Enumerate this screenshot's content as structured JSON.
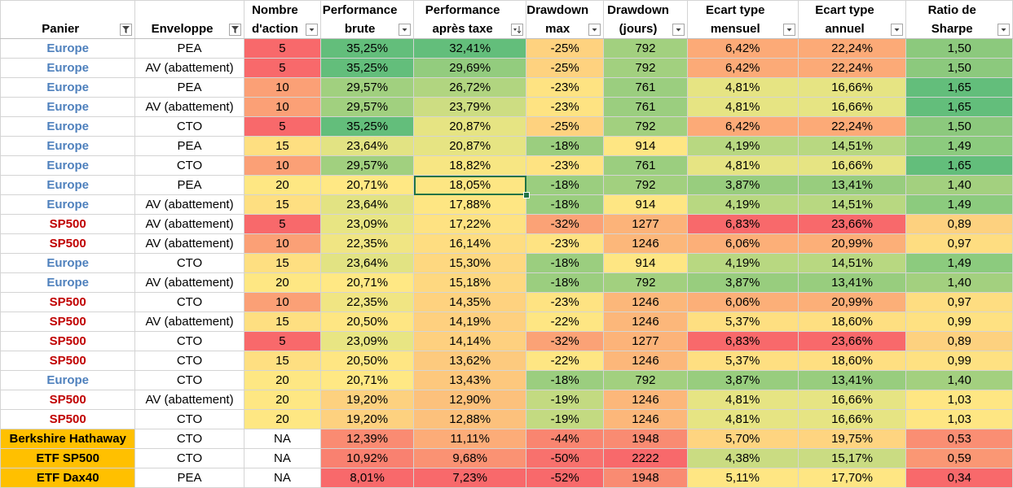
{
  "headers": [
    {
      "lines": [
        "",
        "Panier"
      ],
      "filter": "funnel"
    },
    {
      "lines": [
        "",
        "Enveloppe"
      ],
      "filter": "funnel"
    },
    {
      "lines": [
        "Nombre",
        "d'action"
      ],
      "filter": "dropdown"
    },
    {
      "lines": [
        "Performance",
        "brute"
      ],
      "filter": "dropdown"
    },
    {
      "lines": [
        "Performance",
        "après taxe"
      ],
      "filter": "sort-desc"
    },
    {
      "lines": [
        "Drawdown",
        "max"
      ],
      "filter": "dropdown"
    },
    {
      "lines": [
        "Drawdown",
        "(jours)"
      ],
      "filter": "dropdown"
    },
    {
      "lines": [
        "Ecart type",
        "mensuel"
      ],
      "filter": "dropdown"
    },
    {
      "lines": [
        "Ecart type",
        "annuel"
      ],
      "filter": "dropdown"
    },
    {
      "lines": [
        "Ratio de",
        "Sharpe"
      ],
      "filter": "dropdown"
    }
  ],
  "panier_styles": {
    "Europe": {
      "color": "#4f81bd",
      "bg": "#ffffff"
    },
    "SP500": {
      "color": "#c00000",
      "bg": "#ffffff"
    },
    "Berkshire Hathaway": {
      "color": "#000000",
      "bg": "#ffc000"
    },
    "ETF SP500": {
      "color": "#000000",
      "bg": "#ffc000"
    },
    "ETF Dax40": {
      "color": "#000000",
      "bg": "#ffc000"
    }
  },
  "selected_cell": {
    "row": 7,
    "col": 4
  },
  "rows": [
    {
      "cells": [
        "Europe",
        "PEA",
        "5",
        "35,25%",
        "32,41%",
        "-25%",
        "792",
        "6,42%",
        "22,24%",
        "1,50"
      ],
      "colors": [
        "",
        "",
        "#f8696b",
        "#63be7b",
        "#63be7b",
        "#fed27f",
        "#a2d07f",
        "#fcaa77",
        "#fcaa77",
        "#8cc97d"
      ]
    },
    {
      "cells": [
        "Europe",
        "AV (abattement)",
        "5",
        "35,25%",
        "29,69%",
        "-25%",
        "792",
        "6,42%",
        "22,24%",
        "1,50"
      ],
      "colors": [
        "",
        "",
        "#f8696b",
        "#63be7b",
        "#93cc7e",
        "#fed27f",
        "#a2d07f",
        "#fcaa77",
        "#fcaa77",
        "#8cc97d"
      ]
    },
    {
      "cells": [
        "Europe",
        "PEA",
        "10",
        "29,57%",
        "26,72%",
        "-23%",
        "761",
        "4,81%",
        "16,66%",
        "1,65"
      ],
      "colors": [
        "",
        "",
        "#fba076",
        "#a1d07f",
        "#b1d580",
        "#fee382",
        "#9bce7f",
        "#e6e483",
        "#e6e483",
        "#63be7b"
      ]
    },
    {
      "cells": [
        "Europe",
        "AV (abattement)",
        "10",
        "29,57%",
        "23,79%",
        "-23%",
        "761",
        "4,81%",
        "16,66%",
        "1,65"
      ],
      "colors": [
        "",
        "",
        "#fba076",
        "#a1d07f",
        "#cddd82",
        "#fee382",
        "#9bce7f",
        "#e6e483",
        "#e6e483",
        "#63be7b"
      ]
    },
    {
      "cells": [
        "Europe",
        "CTO",
        "5",
        "35,25%",
        "20,87%",
        "-25%",
        "792",
        "6,42%",
        "22,24%",
        "1,50"
      ],
      "colors": [
        "",
        "",
        "#f8696b",
        "#63be7b",
        "#e6e483",
        "#fed27f",
        "#a2d07f",
        "#fcaa77",
        "#fcaa77",
        "#8cc97d"
      ]
    },
    {
      "cells": [
        "Europe",
        "PEA",
        "15",
        "23,64%",
        "20,87%",
        "-18%",
        "914",
        "4,19%",
        "14,51%",
        "1,49"
      ],
      "colors": [
        "",
        "",
        "#fedf81",
        "#e2e383",
        "#e6e483",
        "#9bce7f",
        "#fee683",
        "#b8d881",
        "#b8d881",
        "#8ccb7e"
      ]
    },
    {
      "cells": [
        "Europe",
        "CTO",
        "10",
        "29,57%",
        "18,82%",
        "-23%",
        "761",
        "4,81%",
        "16,66%",
        "1,65"
      ],
      "colors": [
        "",
        "",
        "#fba076",
        "#a1d07f",
        "#f7e683",
        "#fee382",
        "#9bce7f",
        "#e6e483",
        "#e6e483",
        "#63be7b"
      ]
    },
    {
      "cells": [
        "Europe",
        "PEA",
        "20",
        "20,71%",
        "18,05%",
        "-18%",
        "792",
        "3,87%",
        "13,41%",
        "1,40"
      ],
      "colors": [
        "",
        "",
        "#fee783",
        "#ffe884",
        "#fde683",
        "#9bce7f",
        "#a2d07f",
        "#98cd7e",
        "#98cd7e",
        "#a3d07f"
      ]
    },
    {
      "cells": [
        "Europe",
        "AV (abattement)",
        "15",
        "23,64%",
        "17,88%",
        "-18%",
        "914",
        "4,19%",
        "14,51%",
        "1,49"
      ],
      "colors": [
        "",
        "",
        "#fedf81",
        "#e2e383",
        "#fee683",
        "#9bce7f",
        "#fee683",
        "#b8d881",
        "#b8d881",
        "#8ccb7e"
      ]
    },
    {
      "cells": [
        "SP500",
        "AV (abattement)",
        "5",
        "23,09%",
        "17,22%",
        "-32%",
        "1277",
        "6,83%",
        "23,66%",
        "0,89"
      ],
      "colors": [
        "",
        "",
        "#f8696b",
        "#e8e583",
        "#fee282",
        "#fba276",
        "#fcb379",
        "#f8696b",
        "#f8696b",
        "#fdd17f"
      ]
    },
    {
      "cells": [
        "SP500",
        "AV (abattement)",
        "10",
        "22,35%",
        "16,14%",
        "-23%",
        "1246",
        "6,06%",
        "20,99%",
        "0,97"
      ],
      "colors": [
        "",
        "",
        "#fba076",
        "#f0e583",
        "#fedd81",
        "#fee382",
        "#fcb77a",
        "#fcaf78",
        "#fcaf78",
        "#fedd81"
      ]
    },
    {
      "cells": [
        "Europe",
        "CTO",
        "15",
        "23,64%",
        "15,30%",
        "-18%",
        "914",
        "4,19%",
        "14,51%",
        "1,49"
      ],
      "colors": [
        "",
        "",
        "#fedf81",
        "#e2e383",
        "#fed880",
        "#9bce7f",
        "#fee683",
        "#b8d881",
        "#b8d881",
        "#8ccb7e"
      ]
    },
    {
      "cells": [
        "Europe",
        "AV (abattement)",
        "20",
        "20,71%",
        "15,18%",
        "-18%",
        "792",
        "3,87%",
        "13,41%",
        "1,40"
      ],
      "colors": [
        "",
        "",
        "#fee783",
        "#ffe884",
        "#fed880",
        "#9bce7f",
        "#a2d07f",
        "#98cd7e",
        "#98cd7e",
        "#a3d07f"
      ]
    },
    {
      "cells": [
        "SP500",
        "CTO",
        "10",
        "22,35%",
        "14,35%",
        "-23%",
        "1246",
        "6,06%",
        "20,99%",
        "0,97"
      ],
      "colors": [
        "",
        "",
        "#fba076",
        "#f0e583",
        "#fed27f",
        "#fee382",
        "#fcb77a",
        "#fcaf78",
        "#fcaf78",
        "#fedd81"
      ]
    },
    {
      "cells": [
        "SP500",
        "AV (abattement)",
        "15",
        "20,50%",
        "14,19%",
        "-22%",
        "1246",
        "5,37%",
        "18,60%",
        "0,99"
      ],
      "colors": [
        "",
        "",
        "#fedf81",
        "#fee683",
        "#fed07f",
        "#fee683",
        "#fcb77a",
        "#fedf81",
        "#fedf81",
        "#fee182"
      ]
    },
    {
      "cells": [
        "SP500",
        "CTO",
        "5",
        "23,09%",
        "14,14%",
        "-32%",
        "1277",
        "6,83%",
        "23,66%",
        "0,89"
      ],
      "colors": [
        "",
        "",
        "#f8696b",
        "#e8e583",
        "#fed07f",
        "#fba276",
        "#fcb379",
        "#f8696b",
        "#f8696b",
        "#fdd17f"
      ]
    },
    {
      "cells": [
        "SP500",
        "CTO",
        "15",
        "20,50%",
        "13,62%",
        "-22%",
        "1246",
        "5,37%",
        "18,60%",
        "0,99"
      ],
      "colors": [
        "",
        "",
        "#fedf81",
        "#fee683",
        "#fdca7e",
        "#fee683",
        "#fcb77a",
        "#fedf81",
        "#fedf81",
        "#fee182"
      ]
    },
    {
      "cells": [
        "Europe",
        "CTO",
        "20",
        "20,71%",
        "13,43%",
        "-18%",
        "792",
        "3,87%",
        "13,41%",
        "1,40"
      ],
      "colors": [
        "",
        "",
        "#fee783",
        "#ffe884",
        "#fdc87d",
        "#9bce7f",
        "#a2d07f",
        "#98cd7e",
        "#98cd7e",
        "#a3d07f"
      ]
    },
    {
      "cells": [
        "SP500",
        "AV (abattement)",
        "20",
        "19,20%",
        "12,90%",
        "-19%",
        "1246",
        "4,81%",
        "16,66%",
        "1,03"
      ],
      "colors": [
        "",
        "",
        "#fee783",
        "#fdd17f",
        "#fcc17c",
        "#c3da81",
        "#fcb77a",
        "#e6e483",
        "#e6e483",
        "#fee683"
      ]
    },
    {
      "cells": [
        "SP500",
        "CTO",
        "20",
        "19,20%",
        "12,88%",
        "-19%",
        "1246",
        "4,81%",
        "16,66%",
        "1,03"
      ],
      "colors": [
        "",
        "",
        "#fee783",
        "#fdd17f",
        "#fcc17c",
        "#c3da81",
        "#fcb77a",
        "#e6e483",
        "#e6e483",
        "#fee683"
      ]
    },
    {
      "cells": [
        "Berkshire Hathaway",
        "CTO",
        "NA",
        "12,39%",
        "11,11%",
        "-44%",
        "1948",
        "5,70%",
        "19,75%",
        "0,53"
      ],
      "colors": [
        "",
        "",
        "",
        "#fa8b72",
        "#fcac78",
        "#f98570",
        "#f98b72",
        "#fed480",
        "#fed480",
        "#fa8e73"
      ]
    },
    {
      "cells": [
        "ETF SP500",
        "CTO",
        "NA",
        "10,92%",
        "9,68%",
        "-50%",
        "2222",
        "4,38%",
        "15,17%",
        "0,59"
      ],
      "colors": [
        "",
        "",
        "",
        "#f98170",
        "#fa9273",
        "#f8716d",
        "#f8696b",
        "#cadc82",
        "#cadc82",
        "#fa9774"
      ]
    },
    {
      "cells": [
        "ETF Dax40",
        "PEA",
        "NA",
        "8,01%",
        "7,23%",
        "-52%",
        "1948",
        "5,11%",
        "17,70%",
        "0,34"
      ],
      "colors": [
        "",
        "",
        "",
        "#f8696b",
        "#f8696b",
        "#f8696b",
        "#f98b72",
        "#fee683",
        "#fee683",
        "#f8696b"
      ]
    }
  ]
}
